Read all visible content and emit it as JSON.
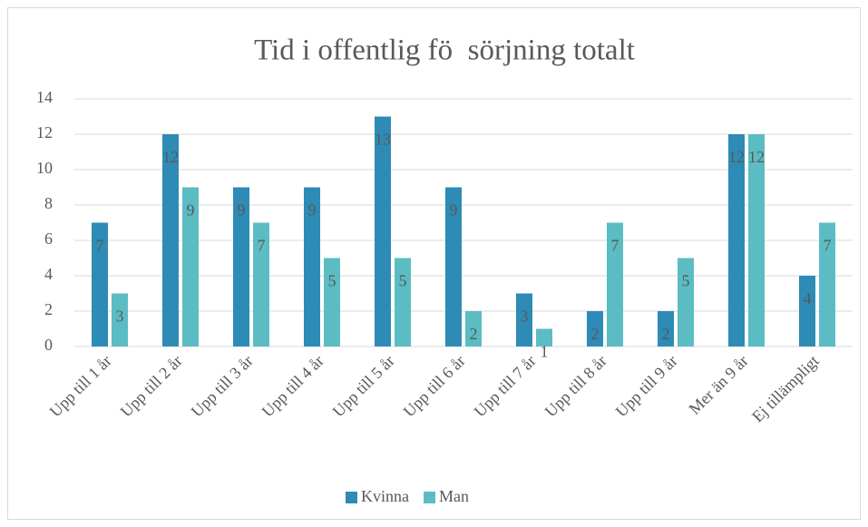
{
  "chart_data": {
    "type": "bar",
    "title": "Tid i offentlig fö  sörjning totalt",
    "categories": [
      "Upp till 1 år",
      "Upp till 2 år",
      "Upp till 3 år",
      "Upp till 4 år",
      "Upp till 5 år",
      "Upp till 6 år",
      "Upp till 7 år",
      "Upp till 8 år",
      "Upp till 9 år",
      "Mer än 9 år",
      "Ej tillämpligt"
    ],
    "series": [
      {
        "name": "Kvinna",
        "color": "#2e8bb5",
        "values": [
          7,
          12,
          9,
          9,
          13,
          9,
          3,
          2,
          2,
          12,
          4
        ]
      },
      {
        "name": "Man",
        "color": "#5bbcc4",
        "values": [
          3,
          9,
          7,
          5,
          5,
          2,
          1,
          7,
          5,
          12,
          7
        ]
      }
    ],
    "ylim": [
      0,
      14
    ],
    "yticks": [
      0,
      2,
      4,
      6,
      8,
      10,
      12,
      14
    ],
    "grid": true,
    "legend": "bottom"
  }
}
